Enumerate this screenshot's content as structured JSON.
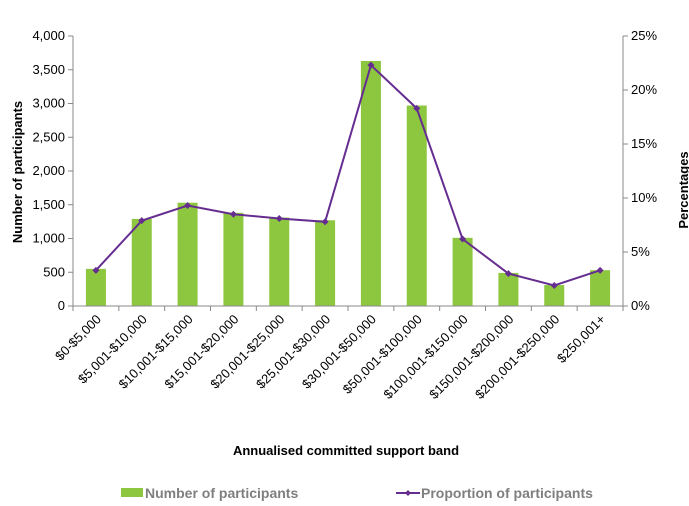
{
  "chart_data": {
    "type": "bar",
    "categories": [
      "$0-$5,000",
      "$5,001-$10,000",
      "$10,001-$15,000",
      "$15,001-$20,000",
      "$20,001-$25,000",
      "$25,001-$30,000",
      "$30,001-$50,000",
      "$50,001-$100,000",
      "$100,001-$150,000",
      "$150,001-$200,000",
      "$200,001-$250,000",
      "$250,001+"
    ],
    "series": [
      {
        "name": "Number of participants",
        "type": "bar",
        "axis": "left",
        "color": "#8dc63f",
        "values": [
          550,
          1290,
          1530,
          1380,
          1310,
          1270,
          3630,
          2970,
          1010,
          490,
          310,
          530
        ]
      },
      {
        "name": "Proportion of participants",
        "type": "line",
        "axis": "right",
        "color": "#662d91",
        "values": [
          3.3,
          7.9,
          9.3,
          8.5,
          8.1,
          7.8,
          22.3,
          18.3,
          6.2,
          3.0,
          1.9,
          3.3
        ]
      }
    ],
    "xlabel": "Annualised committed support band",
    "ylabel": "Number of participants",
    "y2label": "Percentages",
    "ylim": [
      0,
      4000
    ],
    "y2lim": [
      0,
      25
    ],
    "yticks": [
      "0",
      "500",
      "1,000",
      "1,500",
      "2,000",
      "2,500",
      "3,000",
      "3,500",
      "4,000"
    ],
    "y2ticks": [
      "0%",
      "5%",
      "10%",
      "15%",
      "20%",
      "25%"
    ],
    "legend_position": "bottom",
    "grid": false
  }
}
